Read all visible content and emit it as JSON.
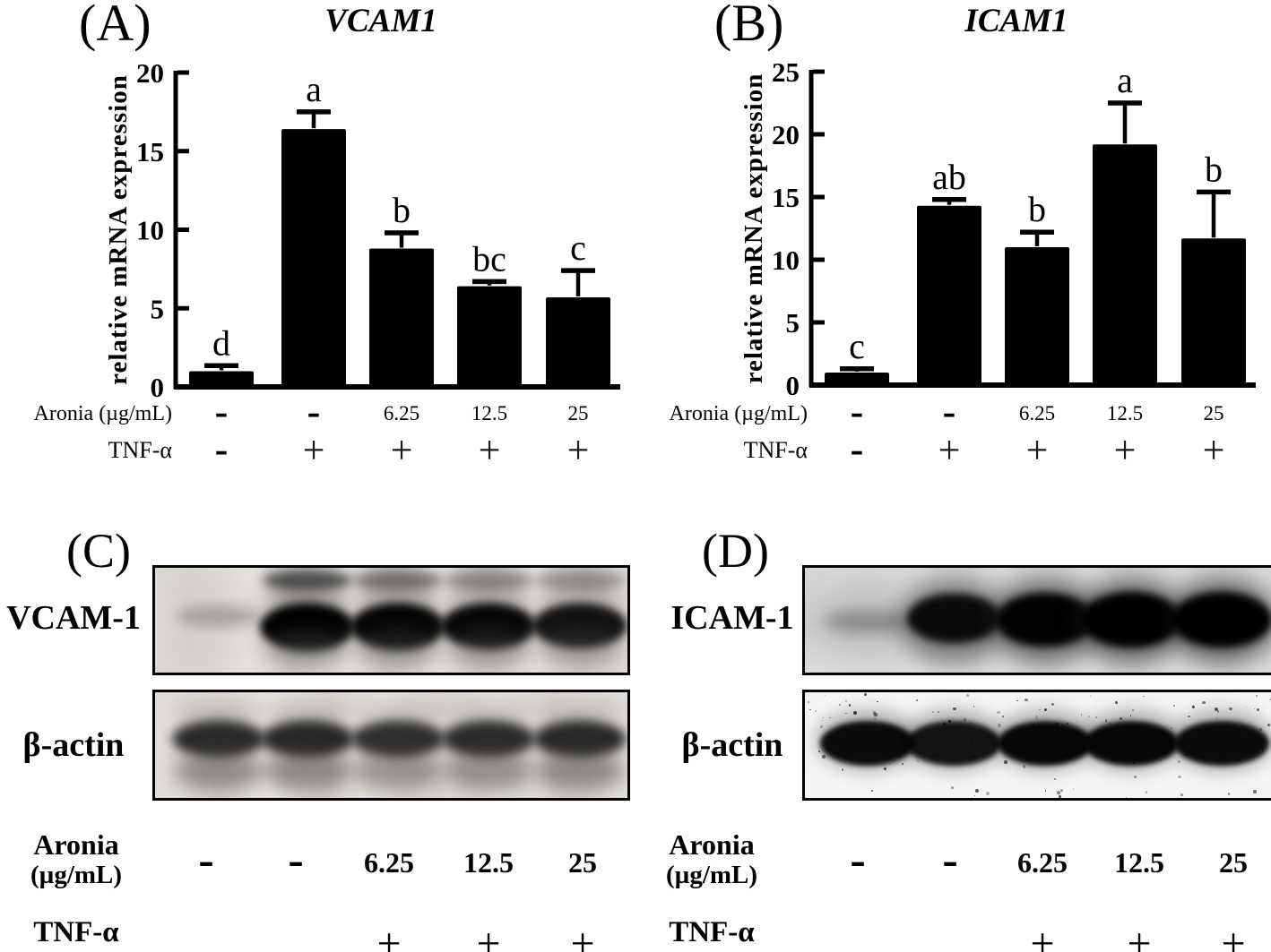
{
  "figure": {
    "background": "#ffffff",
    "ink": "#000000",
    "description_visible_panels": [
      "(A)",
      "(B)",
      "(C)",
      "(D)"
    ]
  },
  "chart_data": [
    {
      "type": "bar",
      "panel_letter": "(A)",
      "title": "VCAM1",
      "ylabel": "relative mRNA expression",
      "ylim": [
        0,
        20
      ],
      "yticks": [
        0,
        5,
        10,
        15,
        20
      ],
      "grid": "off",
      "bar_color": "#000000",
      "values": [
        1.0,
        16.4,
        8.8,
        6.4,
        5.7
      ],
      "errors": [
        0.35,
        1.1,
        1.0,
        0.3,
        1.7
      ],
      "sig_letters": [
        "d",
        "a",
        "b",
        "bc",
        "c"
      ],
      "x_rows": [
        {
          "label": "Aronia (µg/mL)",
          "values": [
            "-",
            "-",
            "6.25",
            "12.5",
            "25"
          ]
        },
        {
          "label": "TNF-α",
          "values": [
            "-",
            "+",
            "+",
            "+",
            "+"
          ]
        }
      ]
    },
    {
      "type": "bar",
      "panel_letter": "(B)",
      "title": "ICAM1",
      "ylabel": "relative mRNA expression",
      "ylim": [
        0,
        25
      ],
      "yticks": [
        0,
        5,
        10,
        15,
        20,
        25
      ],
      "grid": "off",
      "bar_color": "#000000",
      "values": [
        1.0,
        14.3,
        11.0,
        19.2,
        11.7
      ],
      "errors": [
        0.3,
        0.5,
        1.2,
        3.3,
        3.7
      ],
      "sig_letters": [
        "c",
        "ab",
        "b",
        "a",
        "b"
      ],
      "x_rows": [
        {
          "label": "Aronia (µg/mL)",
          "values": [
            "-",
            "-",
            "6.25",
            "12.5",
            "25"
          ]
        },
        {
          "label": "TNF-α",
          "values": [
            "-",
            "+",
            "+",
            "+",
            "+"
          ]
        }
      ]
    }
  ],
  "blots": [
    {
      "panel_letter": "(C)",
      "rows": [
        {
          "label": "VCAM-1",
          "style": "smeary",
          "band_intensity": [
            0.18,
            1.0,
            0.95,
            0.92,
            0.8
          ],
          "top_smear": [
            0,
            0.85,
            0.6,
            0.45,
            0.4
          ]
        },
        {
          "label": "β-actin",
          "style": "gray",
          "band_intensity": [
            0.88,
            0.92,
            0.82,
            0.86,
            0.9
          ]
        }
      ],
      "x_rows": [
        {
          "label_lines": [
            "Aronia",
            "(µg/mL)"
          ],
          "values": [
            "-",
            "-",
            "6.25",
            "12.5",
            "25"
          ]
        },
        {
          "label_lines": [
            "TNF-α"
          ],
          "values": [
            "-",
            "-",
            "+",
            "+",
            "+"
          ]
        }
      ]
    },
    {
      "panel_letter": "(D)",
      "rows": [
        {
          "label": "ICAM-1",
          "style": "halo",
          "band_intensity": [
            0.22,
            0.78,
            0.95,
            1.0,
            1.0
          ]
        },
        {
          "label": "β-actin",
          "style": "speckled",
          "band_intensity": [
            0.98,
            0.92,
            1.0,
            1.0,
            0.98
          ]
        }
      ],
      "x_rows": [
        {
          "label_lines": [
            "Aronia",
            "(µg/mL)"
          ],
          "values": [
            "-",
            "-",
            "6.25",
            "12.5",
            "25"
          ]
        },
        {
          "label_lines": [
            "TNF-α"
          ],
          "values": [
            "-",
            "-",
            "+",
            "+",
            "+"
          ]
        }
      ]
    }
  ]
}
